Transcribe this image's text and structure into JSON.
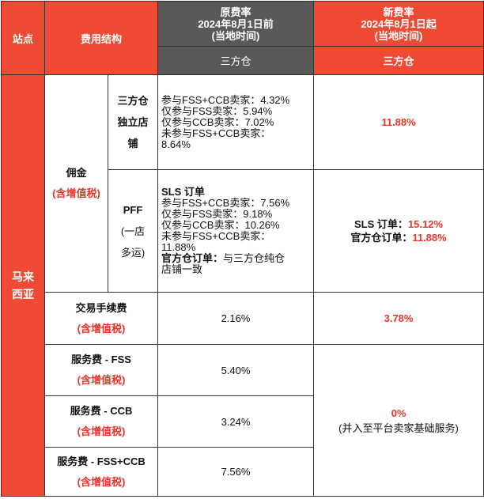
{
  "header": {
    "site": "站点",
    "fee_structure": "费用结构",
    "old_rate_title": "原费率",
    "old_rate_date": "2024年8月1日前",
    "old_rate_note": "(当地时间)",
    "new_rate_title": "新费率",
    "new_rate_date": "2024年8月1日起",
    "new_rate_note": "(当地时间)",
    "old_sub": "三方仓",
    "new_sub": "三方仓"
  },
  "site_name_line1": "马来",
  "site_name_line2": "西亚",
  "commission": {
    "label": "佣金",
    "tax_note": "(含增值税)",
    "sub1": {
      "label_line1": "三方仓",
      "label_line2": "独立店",
      "label_line3": "铺",
      "old_lines": [
        "参与FSS+CCB卖家：4.32%",
        "仅参与FSS卖家：5.94%",
        "仅参与CCB卖家：7.02%",
        "未参与FSS+CCB卖家：",
        "8.64%"
      ],
      "new_value": "11.88%"
    },
    "sub2": {
      "label_line1": "PFF",
      "label_line2": "(一店",
      "label_line3": "多运)",
      "old_heading": "SLS 订单",
      "old_lines": [
        "参与FSS+CCB卖家：7.56%",
        "仅参与FSS卖家：9.18%",
        "仅参与CCB卖家：10.26%",
        "未参与FSS+CCB卖家：",
        "11.88%"
      ],
      "old_official_label": "官方仓订单：",
      "old_official_text": "与三方仓纯仓",
      "old_official_text2": "店铺一致",
      "new_sls_label": "SLS 订单：",
      "new_sls_value": "15.12%",
      "new_official_label": "官方仓订单：",
      "new_official_value": "11.88%"
    }
  },
  "transaction_fee": {
    "label": "交易手续费",
    "tax_note": "(含增值税)",
    "old_value": "2.16%",
    "new_value": "3.78%"
  },
  "service_fss": {
    "label": "服务费 - FSS",
    "tax_note": "(含增值税)",
    "old_value": "5.40%"
  },
  "service_ccb": {
    "label": "服务费 - CCB",
    "tax_note": "(含增值税)",
    "old_value": "3.24%"
  },
  "service_fss_ccb": {
    "label": "服务费 - FSS+CCB",
    "tax_note": "(含增值税)",
    "old_value": "7.56%"
  },
  "service_new": {
    "value": "0%",
    "note": "(并入至平台卖家基础服务)"
  }
}
